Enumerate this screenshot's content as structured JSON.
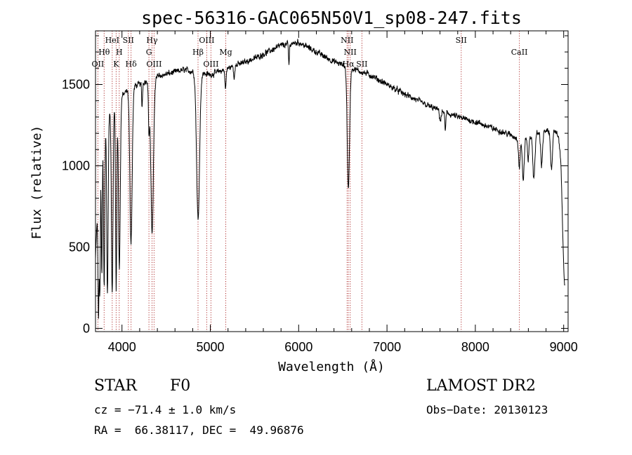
{
  "chart_data": {
    "type": "line",
    "title": "spec-56316-GAC065N50V1_sp08-247.fits",
    "xlabel": "Wavelength (Å)",
    "ylabel": "Flux (relative)",
    "xlim": [
      3700,
      9050
    ],
    "ylim": [
      -20,
      1830
    ],
    "xticks": [
      4000,
      5000,
      6000,
      7000,
      8000,
      9000
    ],
    "yticks": [
      0,
      500,
      1000,
      1500
    ],
    "continuum": [
      [
        3700,
        1150
      ],
      [
        3900,
        1380
      ],
      [
        4100,
        1480
      ],
      [
        4400,
        1550
      ],
      [
        4700,
        1590
      ],
      [
        5000,
        1560
      ],
      [
        5200,
        1600
      ],
      [
        5500,
        1660
      ],
      [
        5800,
        1740
      ],
      [
        6000,
        1760
      ],
      [
        6200,
        1700
      ],
      [
        6400,
        1640
      ],
      [
        6600,
        1600
      ],
      [
        6800,
        1560
      ],
      [
        7000,
        1500
      ],
      [
        7200,
        1440
      ],
      [
        7500,
        1360
      ],
      [
        7800,
        1300
      ],
      [
        8000,
        1270
      ],
      [
        8200,
        1230
      ],
      [
        8400,
        1190
      ],
      [
        8500,
        1160
      ],
      [
        8700,
        1200
      ],
      [
        8900,
        1220
      ],
      [
        8980,
        1150
      ]
    ],
    "absorption": [
      {
        "center": 3734,
        "depth": 800,
        "width": 6
      },
      {
        "center": 3750,
        "depth": 850,
        "width": 6
      },
      {
        "center": 3771,
        "depth": 900,
        "width": 6
      },
      {
        "center": 3798,
        "depth": 1000,
        "width": 7
      },
      {
        "center": 3835,
        "depth": 1100,
        "width": 8
      },
      {
        "center": 3889,
        "depth": 1150,
        "width": 9
      },
      {
        "center": 3934,
        "depth": 1150,
        "width": 7
      },
      {
        "center": 3970,
        "depth": 1050,
        "width": 10
      },
      {
        "center": 4102,
        "depth": 950,
        "width": 13
      },
      {
        "center": 4227,
        "depth": 150,
        "width": 5
      },
      {
        "center": 4305,
        "depth": 300,
        "width": 6
      },
      {
        "center": 4341,
        "depth": 950,
        "width": 15
      },
      {
        "center": 4861,
        "depth": 900,
        "width": 17
      },
      {
        "center": 5172,
        "depth": 120,
        "width": 7
      },
      {
        "center": 5269,
        "depth": 80,
        "width": 5
      },
      {
        "center": 5890,
        "depth": 130,
        "width": 5
      },
      {
        "center": 6563,
        "depth": 750,
        "width": 13
      },
      {
        "center": 7605,
        "depth": 60,
        "width": 10
      },
      {
        "center": 7660,
        "depth": 110,
        "width": 6
      },
      {
        "center": 8498,
        "depth": 170,
        "width": 9
      },
      {
        "center": 8542,
        "depth": 250,
        "width": 11
      },
      {
        "center": 8598,
        "depth": 150,
        "width": 8
      },
      {
        "center": 8662,
        "depth": 270,
        "width": 12
      },
      {
        "center": 8750,
        "depth": 200,
        "width": 10
      },
      {
        "center": 8863,
        "depth": 220,
        "width": 12
      },
      {
        "center": 9014,
        "depth": 900,
        "width": 25
      }
    ],
    "noise_amplitude": 22,
    "emission_lines": [
      {
        "label": "OII",
        "wavelength": 3727,
        "row": 3
      },
      {
        "label": "Hθ",
        "wavelength": 3798,
        "row": 2
      },
      {
        "label": "HeI",
        "wavelength": 3889,
        "row": 1
      },
      {
        "label": "K",
        "wavelength": 3934,
        "row": 3
      },
      {
        "label": "SII",
        "wavelength": 4072,
        "row": 1
      },
      {
        "label": "H",
        "wavelength": 3969,
        "row": 2
      },
      {
        "label": "Hδ",
        "wavelength": 4102,
        "row": 3
      },
      {
        "label": "Hγ",
        "wavelength": 4340,
        "row": 1
      },
      {
        "label": "G",
        "wavelength": 4305,
        "row": 2
      },
      {
        "label": "OIII",
        "wavelength": 4363,
        "row": 3
      },
      {
        "label": "OIII",
        "wavelength": 4959,
        "row": 1
      },
      {
        "label": "Hβ",
        "wavelength": 4861,
        "row": 2
      },
      {
        "label": "OIII",
        "wavelength": 5007,
        "row": 3
      },
      {
        "label": "Mg",
        "wavelength": 5175,
        "row": 2
      },
      {
        "label": "NII",
        "wavelength": 6548,
        "row": 1
      },
      {
        "label": "NII",
        "wavelength": 6583,
        "row": 2
      },
      {
        "label": "Hα",
        "wavelength": 6563,
        "row": 3
      },
      {
        "label": "SII",
        "wavelength": 6716,
        "row": 3
      },
      {
        "label": "SII",
        "wavelength": 7840,
        "row": 1
      },
      {
        "label": "CaII",
        "wavelength": 8498,
        "row": 2
      }
    ]
  },
  "footer": {
    "object_class": "STAR",
    "subclass": "F0",
    "survey": "LAMOST DR2",
    "cz": "cz = −71.4 ± 1.0 km/s",
    "obs_date": "Obs−Date: 20130123",
    "coords": "RA =  66.38117, DEC =  49.96876"
  },
  "colors": {
    "line": "#000000",
    "marker": "#b03030",
    "axes": "#000000"
  }
}
